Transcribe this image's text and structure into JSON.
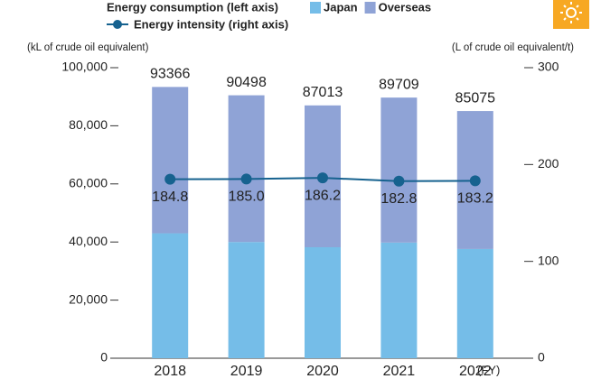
{
  "chart_data": {
    "type": "bar",
    "stacked": true,
    "legend_title": "Energy consumption (left axis)",
    "y_label": "(kL of crude oil equivalent)",
    "y2_label": "(L of crude oil equivalent/t)",
    "x_label": "(FY)",
    "categories": [
      "2018",
      "2019",
      "2020",
      "2021",
      "2022"
    ],
    "series": [
      {
        "name": "Japan",
        "color": "#75bde8",
        "values": [
          43000,
          40000,
          38200,
          39800,
          37600
        ]
      },
      {
        "name": "Overseas",
        "color": "#8fa3d6",
        "values": [
          50366,
          50498,
          48813,
          49909,
          47475
        ]
      },
      {
        "name": "Energy intensity (right axis)",
        "color": "#16628f",
        "type": "line",
        "axis": "y2",
        "values": [
          184.8,
          185.0,
          186.2,
          182.8,
          183.2
        ],
        "value_labels": [
          "184.8",
          "185.0",
          "186.2",
          "182.8",
          "183.2"
        ]
      }
    ],
    "totals": [
      93366,
      90498,
      87013,
      89709,
      85075
    ],
    "total_labels": [
      "93,366",
      "90,498",
      "87,013",
      "89,709",
      "85,075"
    ],
    "ylim": [
      0,
      100000
    ],
    "yticks": [
      0,
      {
        "value": 20000,
        "label": "20,000"
      },
      {
        "value": 40000,
        "label": "40,000"
      },
      {
        "value": 60000,
        "label": "60,000"
      },
      {
        "value": 80000,
        "label": "80,000"
      },
      {
        "value": 100000,
        "label": "100,000"
      }
    ],
    "y2lim": [
      0,
      300
    ],
    "y2ticks": [
      0,
      100,
      200,
      300
    ]
  }
}
